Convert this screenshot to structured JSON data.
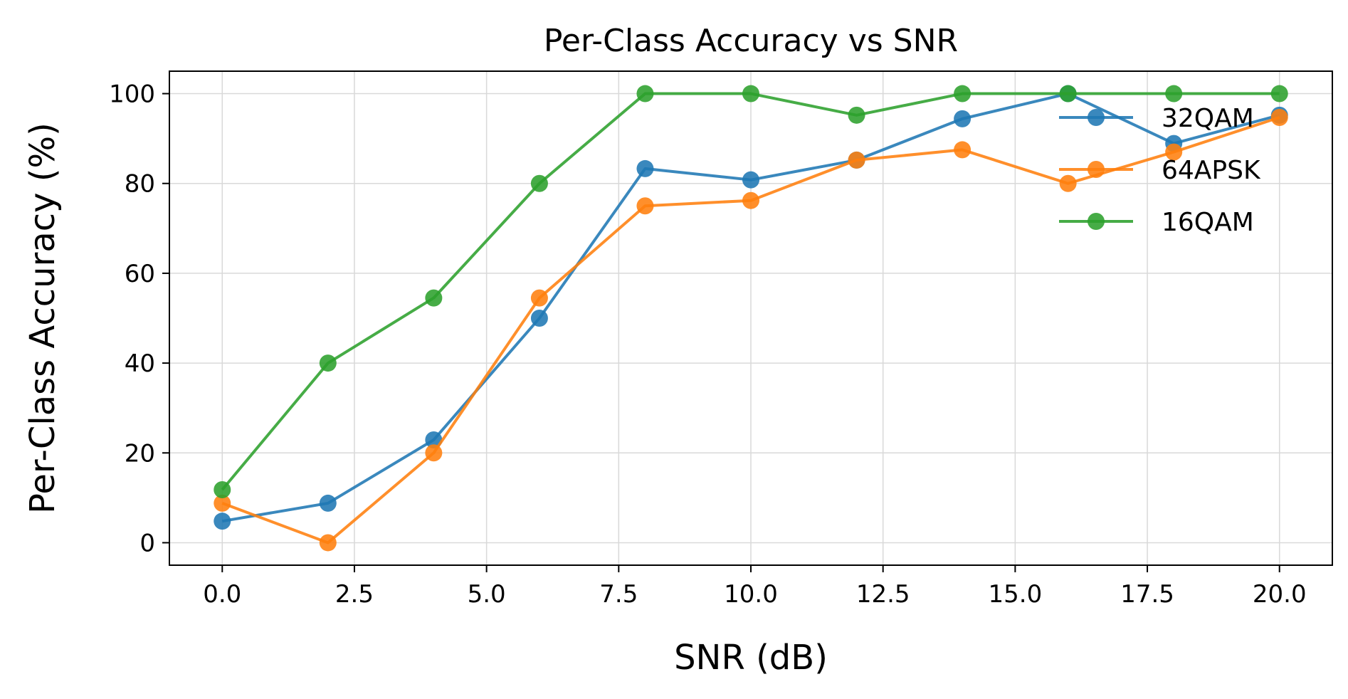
{
  "chart_data": {
    "type": "line",
    "title": "Per-Class Accuracy vs SNR",
    "xlabel": "SNR (dB)",
    "ylabel": "Per-Class Accuracy (%)",
    "xlim": [
      -1,
      21
    ],
    "ylim": [
      -5,
      105
    ],
    "xticks": [
      0.0,
      2.5,
      5.0,
      7.5,
      10.0,
      12.5,
      15.0,
      17.5,
      20.0
    ],
    "xtick_labels": [
      "0.0",
      "2.5",
      "5.0",
      "7.5",
      "10.0",
      "12.5",
      "15.0",
      "17.5",
      "20.0"
    ],
    "yticks": [
      0,
      20,
      40,
      60,
      80,
      100
    ],
    "ytick_labels": [
      "0",
      "20",
      "40",
      "60",
      "80",
      "100"
    ],
    "grid": true,
    "legend_position": "upper-right",
    "x": [
      0,
      2,
      4,
      6,
      8,
      10,
      12,
      14,
      16,
      18,
      20
    ],
    "series": [
      {
        "name": "32QAM",
        "color": "#1f77b4",
        "values": [
          4.8,
          8.8,
          22.9,
          50.0,
          83.3,
          80.8,
          85.2,
          94.4,
          100.0,
          88.9,
          95.2
        ]
      },
      {
        "name": "64APSK",
        "color": "#ff7f0e",
        "values": [
          8.8,
          0.0,
          20.0,
          54.5,
          75.0,
          76.2,
          85.2,
          87.5,
          80.0,
          87.0,
          94.7
        ]
      },
      {
        "name": "16QAM",
        "color": "#2ca02c",
        "values": [
          11.8,
          40.0,
          54.5,
          80.0,
          100.0,
          100.0,
          95.2,
          100.0,
          100.0,
          100.0,
          100.0
        ]
      }
    ]
  }
}
